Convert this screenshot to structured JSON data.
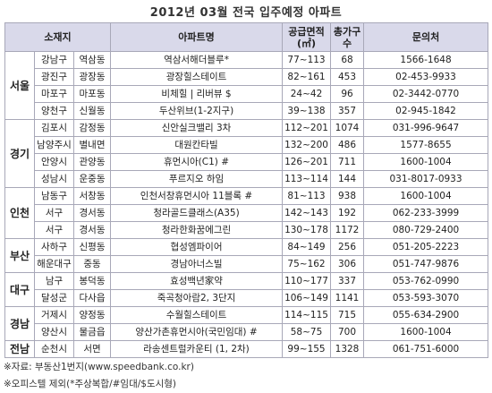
{
  "title": "2012년 03월 전국 입주예정 아파트",
  "table": {
    "headers": [
      "소재지",
      "아파트명",
      "공급면적(㎡)",
      "총가구수",
      "문의처"
    ],
    "regions": [
      {
        "name": "서울",
        "rows": [
          [
            "강남구",
            "역삼동",
            "역삼서해더블루*",
            "77~113",
            68,
            "1566-1648"
          ],
          [
            "광진구",
            "광장동",
            "광장힐스테이트",
            "82~161",
            453,
            "02-453-9933"
          ],
          [
            "마포구",
            "마포동",
            "비체힐 | 리버뷰 $",
            "24~42",
            96,
            "02-3442-0770"
          ],
          [
            "양천구",
            "신월동",
            "두산위브(1-2지구)",
            "39~138",
            357,
            "02-945-1842"
          ]
        ]
      },
      {
        "name": "경기",
        "rows": [
          [
            "김포시",
            "감정동",
            "신안실크밸리 3차",
            "112~201",
            1074,
            "031-996-9647"
          ],
          [
            "남양주시",
            "별내면",
            "대원칸타빌",
            "132~200",
            486,
            "1577-8655"
          ],
          [
            "안양시",
            "관양동",
            "휴먼시아(C1) #",
            "126~201",
            711,
            "1600-1004"
          ],
          [
            "성남시",
            "운중동",
            "푸르지오 하임",
            "113~114",
            144,
            "031-8017-0933"
          ]
        ]
      },
      {
        "name": "인천",
        "rows": [
          [
            "남동구",
            "서창동",
            "인천서창휴먼시아 11블록 #",
            "81~113",
            938,
            "1600-1004"
          ],
          [
            "서구",
            "경서동",
            "청라골드클래스(A35)",
            "142~143",
            192,
            "062-233-3999"
          ],
          [
            "서구",
            "경서동",
            "청라한화꿈에그린",
            "130~178",
            1172,
            "080-729-2400"
          ]
        ]
      },
      {
        "name": "부산",
        "rows": [
          [
            "사하구",
            "신평동",
            "협성엠파이어",
            "84~149",
            256,
            "051-205-2223"
          ],
          [
            "해운대구",
            "중동",
            "경남아너스빌",
            "75~162",
            306,
            "051-747-9876"
          ]
        ]
      },
      {
        "name": "대구",
        "rows": [
          [
            "남구",
            "봉덕동",
            "효성백년家약",
            "110~177",
            337,
            "053-762-0990"
          ],
          [
            "달성군",
            "다사읍",
            "죽곡청아람2, 3단지",
            "106~149",
            1141,
            "053-593-3070"
          ]
        ]
      },
      {
        "name": "경남",
        "rows": [
          [
            "거제시",
            "양정동",
            "수월힐스테이트",
            "114~115",
            715,
            "055-634-2900"
          ],
          [
            "양산시",
            "물금읍",
            "양산가촌휴먼시아(국민임대) #",
            "58~75",
            700,
            "1600-1004"
          ]
        ]
      },
      {
        "name": "전남",
        "rows": [
          [
            "순천시",
            "서면",
            "라송센트럴카운티 (1, 2차)",
            "99~155",
            1328,
            "061-751-6000"
          ]
        ]
      }
    ]
  },
  "notes": [
    "※자료: 부동산1번지(www.speedbank.co.kr)",
    "※오피스텔 제외(*주상복합/#임대/$도시형)"
  ]
}
